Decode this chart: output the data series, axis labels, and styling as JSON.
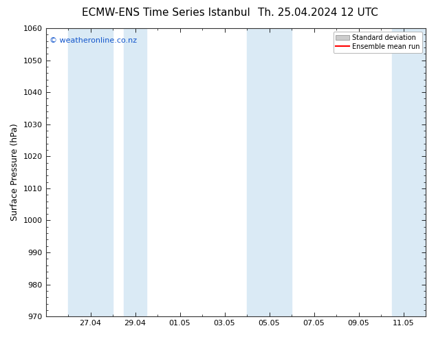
{
  "title_left": "ECMW-ENS Time Series Istanbul",
  "title_right": "Th. 25.04.2024 12 UTC",
  "ylabel": "Surface Pressure (hPa)",
  "ylim": [
    970,
    1060
  ],
  "yticks": [
    970,
    980,
    990,
    1000,
    1010,
    1020,
    1030,
    1040,
    1050,
    1060
  ],
  "x_tick_labels": [
    "27.04",
    "29.04",
    "01.05",
    "03.05",
    "05.05",
    "07.05",
    "09.05",
    "11.05"
  ],
  "x_tick_positions": [
    2,
    4,
    6,
    8,
    10,
    12,
    14,
    16
  ],
  "xlim": [
    0,
    17
  ],
  "shade_bands": [
    {
      "x_start": 1.0,
      "x_end": 3.0
    },
    {
      "x_start": 3.5,
      "x_end": 4.5
    },
    {
      "x_start": 9.0,
      "x_end": 11.0
    },
    {
      "x_start": 15.5,
      "x_end": 17.0
    }
  ],
  "shade_color": "#daeaf5",
  "bg_color": "#ffffff",
  "legend_items": [
    "Standard deviation",
    "Ensemble mean run"
  ],
  "legend_patch_color": "#cccccc",
  "legend_line_color": "#ff0000",
  "watermark": "© weatheronline.co.nz",
  "watermark_color": "#1155cc",
  "title_fontsize": 11,
  "label_fontsize": 9,
  "tick_fontsize": 8,
  "watermark_fontsize": 8
}
